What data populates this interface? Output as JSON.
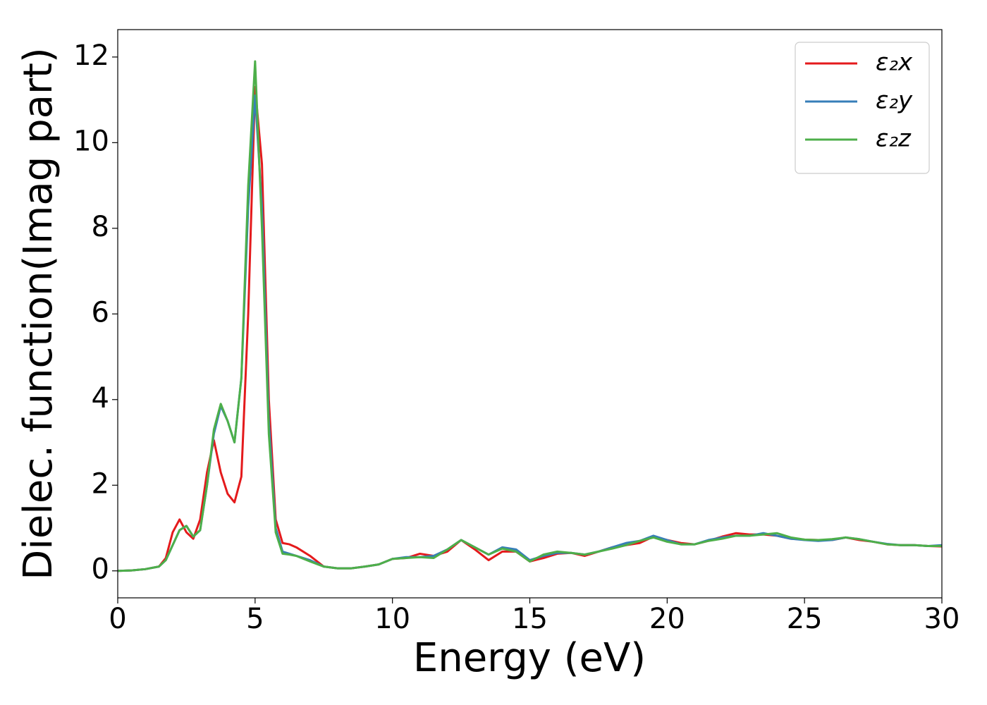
{
  "chart_data": {
    "type": "line",
    "xlabel": "Energy (eV)",
    "ylabel": "Dielec. function(Imag part)",
    "x": [
      0,
      0.5,
      1,
      1.5,
      1.75,
      2,
      2.25,
      2.5,
      2.75,
      3,
      3.25,
      3.5,
      3.75,
      4,
      4.25,
      4.5,
      4.75,
      5,
      5.25,
      5.5,
      5.75,
      6,
      6.25,
      6.5,
      7,
      7.5,
      8,
      8.5,
      9,
      9.5,
      10,
      10.5,
      11,
      11.5,
      12,
      12.5,
      13,
      13.5,
      14,
      14.5,
      15,
      15.5,
      16,
      16.5,
      17,
      17.5,
      18,
      18.5,
      19,
      19.5,
      20,
      20.5,
      21,
      21.5,
      22,
      22.5,
      23,
      23.5,
      24,
      24.5,
      25,
      25.5,
      26,
      26.5,
      27,
      27.5,
      28,
      28.5,
      29,
      29.5,
      30
    ],
    "series": [
      {
        "name": "ε₂x",
        "color": "#e41a1c",
        "values": [
          0,
          0.01,
          0.04,
          0.1,
          0.3,
          0.9,
          1.2,
          0.9,
          0.75,
          1.2,
          2.3,
          3.05,
          2.3,
          1.8,
          1.6,
          2.2,
          6,
          11.3,
          9.5,
          4,
          1.2,
          0.65,
          0.62,
          0.55,
          0.35,
          0.1,
          0.06,
          0.06,
          0.1,
          0.15,
          0.28,
          0.3,
          0.4,
          0.35,
          0.45,
          0.72,
          0.5,
          0.25,
          0.45,
          0.45,
          0.22,
          0.3,
          0.4,
          0.42,
          0.35,
          0.45,
          0.55,
          0.6,
          0.65,
          0.8,
          0.72,
          0.65,
          0.62,
          0.7,
          0.8,
          0.88,
          0.85,
          0.85,
          0.82,
          0.75,
          0.73,
          0.72,
          0.72,
          0.78,
          0.72,
          0.68,
          0.62,
          0.6,
          0.6,
          0.58,
          0.57
        ]
      },
      {
        "name": "ε₂y",
        "color": "#377eb8",
        "values": [
          0,
          0.01,
          0.04,
          0.1,
          0.25,
          0.6,
          0.95,
          1.05,
          0.8,
          0.95,
          2.0,
          3.2,
          3.85,
          3.5,
          3.0,
          4.5,
          8.5,
          11.1,
          8.5,
          3.5,
          1.0,
          0.45,
          0.4,
          0.35,
          0.25,
          0.1,
          0.06,
          0.06,
          0.1,
          0.15,
          0.28,
          0.32,
          0.32,
          0.35,
          0.5,
          0.72,
          0.55,
          0.38,
          0.55,
          0.5,
          0.25,
          0.35,
          0.42,
          0.42,
          0.38,
          0.45,
          0.55,
          0.65,
          0.7,
          0.82,
          0.72,
          0.62,
          0.62,
          0.72,
          0.78,
          0.82,
          0.82,
          0.88,
          0.82,
          0.75,
          0.72,
          0.7,
          0.72,
          0.78,
          0.74,
          0.68,
          0.63,
          0.6,
          0.6,
          0.58,
          0.6
        ]
      },
      {
        "name": "ε₂z",
        "color": "#4daf4a",
        "values": [
          0,
          0.01,
          0.04,
          0.1,
          0.25,
          0.6,
          0.95,
          1.05,
          0.8,
          0.95,
          2.0,
          3.3,
          3.9,
          3.5,
          3.0,
          4.5,
          9,
          11.9,
          8,
          3.2,
          0.9,
          0.4,
          0.38,
          0.35,
          0.22,
          0.1,
          0.06,
          0.06,
          0.1,
          0.15,
          0.28,
          0.3,
          0.32,
          0.3,
          0.5,
          0.72,
          0.55,
          0.38,
          0.52,
          0.45,
          0.22,
          0.38,
          0.45,
          0.42,
          0.38,
          0.45,
          0.52,
          0.6,
          0.7,
          0.78,
          0.68,
          0.62,
          0.62,
          0.7,
          0.75,
          0.82,
          0.82,
          0.85,
          0.88,
          0.78,
          0.73,
          0.72,
          0.74,
          0.78,
          0.74,
          0.68,
          0.62,
          0.6,
          0.6,
          0.58,
          0.58
        ]
      }
    ],
    "xlim": [
      0,
      30
    ],
    "xticks": [
      0,
      5,
      10,
      15,
      20,
      25,
      30
    ],
    "ylim": [
      -0.63,
      12.64
    ],
    "yticks": [
      0,
      2,
      4,
      6,
      8,
      10,
      12
    ],
    "grid": false,
    "legend": "upper right"
  }
}
